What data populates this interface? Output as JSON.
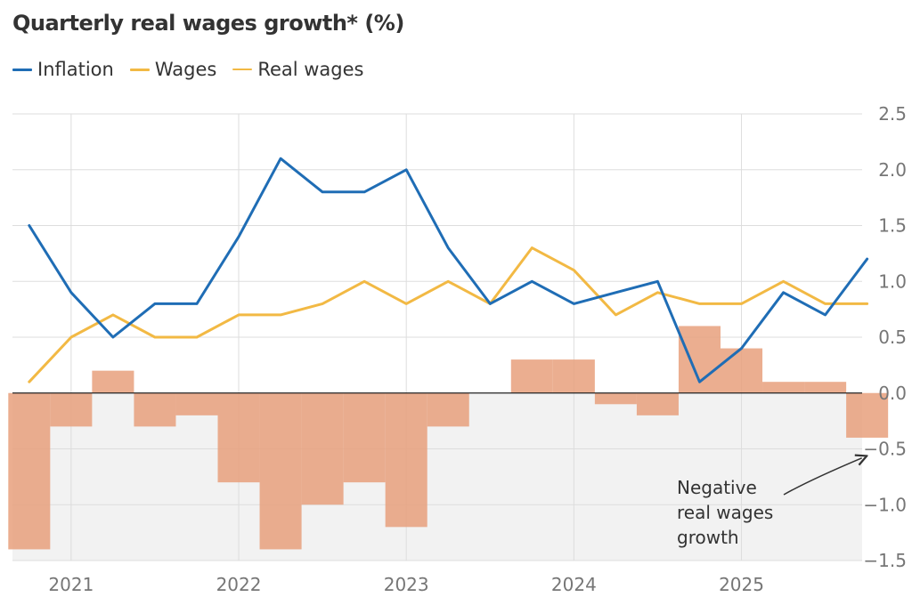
{
  "chart_data": {
    "type": "line",
    "title": "Quarterly real wages growth* (%)",
    "legend": [
      {
        "name": "Inflation",
        "color": "#1f6db5",
        "weight": "thick"
      },
      {
        "name": "Wages",
        "color": "#f2b944",
        "weight": "thick"
      },
      {
        "name": "Real wages",
        "color": "#f2b944",
        "weight": "thin"
      }
    ],
    "ylim": [
      -1.5,
      2.5
    ],
    "yticks": [
      "2.5",
      "2.0",
      "1.5",
      "1.0",
      "0.5",
      "0.0",
      "−0.5",
      "−1.0",
      "−1.5"
    ],
    "ytick_values": [
      2.5,
      2.0,
      1.5,
      1.0,
      0.5,
      0.0,
      -0.5,
      -1.0,
      -1.5
    ],
    "xlim": [
      2020.65,
      2025.72
    ],
    "xticks": [
      "2021",
      "2022",
      "2023",
      "2024",
      "2025"
    ],
    "xtick_values": [
      2021,
      2022,
      2023,
      2024,
      2025
    ],
    "x": [
      2020.75,
      2021.0,
      2021.25,
      2021.5,
      2021.75,
      2022.0,
      2022.25,
      2022.5,
      2022.75,
      2023.0,
      2023.25,
      2023.5,
      2023.75,
      2024.0,
      2024.25,
      2024.5,
      2024.75,
      2025.0,
      2025.25,
      2025.5,
      2025.75
    ],
    "series": [
      {
        "name": "Inflation",
        "values": [
          1.5,
          0.9,
          0.5,
          0.8,
          0.8,
          1.4,
          2.1,
          1.8,
          1.8,
          2.0,
          1.3,
          0.8,
          1.0,
          0.8,
          0.9,
          1.0,
          0.1,
          0.4,
          0.9,
          0.7,
          1.2
        ]
      },
      {
        "name": "Wages",
        "values": [
          0.1,
          0.5,
          0.7,
          0.5,
          0.5,
          0.7,
          0.7,
          0.8,
          1.0,
          0.8,
          1.0,
          0.8,
          1.3,
          1.1,
          0.7,
          0.9,
          0.8,
          0.8,
          1.0,
          0.8,
          0.8
        ]
      }
    ],
    "bars": {
      "name": "Real wages",
      "color": "#e8a07c",
      "x": [
        2020.75,
        2021.0,
        2021.25,
        2021.5,
        2021.75,
        2022.0,
        2022.25,
        2022.5,
        2022.75,
        2023.0,
        2023.25,
        2023.5,
        2023.75,
        2024.0,
        2024.25,
        2024.5,
        2024.75,
        2025.0,
        2025.25,
        2025.5,
        2025.75
      ],
      "values": [
        -1.4,
        -0.3,
        0.2,
        -0.3,
        -0.2,
        -0.8,
        -1.4,
        -1.0,
        -0.8,
        -1.2,
        -0.3,
        0.0,
        0.3,
        0.3,
        -0.1,
        -0.2,
        0.6,
        0.4,
        0.1,
        0.1,
        -0.4
      ]
    },
    "annotation": {
      "lines": [
        "Negative",
        "real wages",
        "growth"
      ],
      "points_to": {
        "x": 2025.75,
        "y": -0.55
      }
    }
  }
}
